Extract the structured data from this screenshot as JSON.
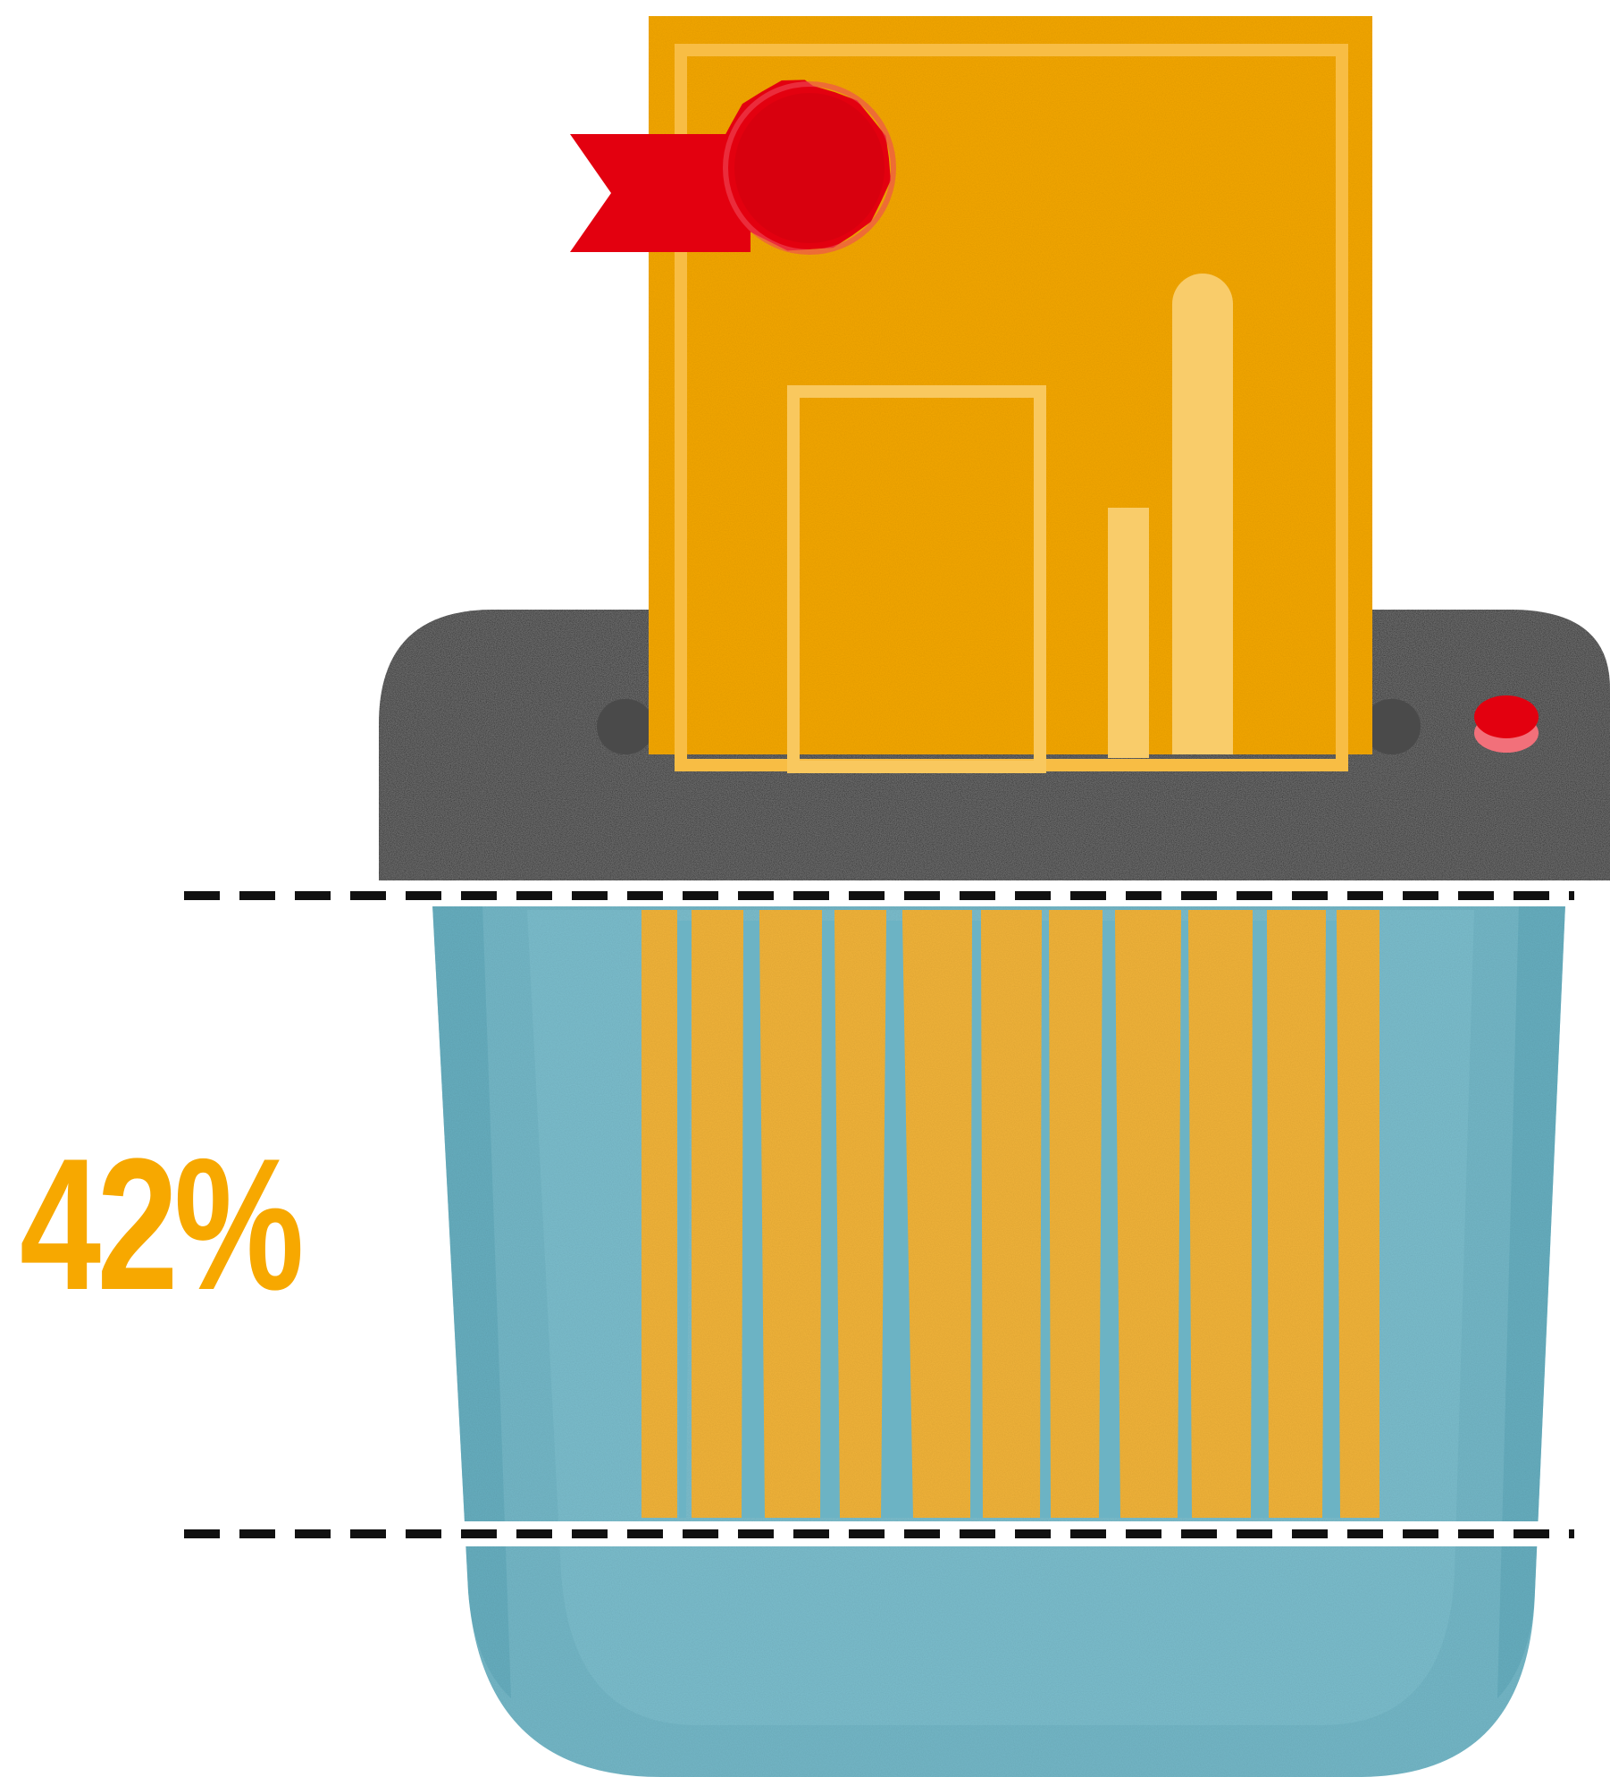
{
  "stat": {
    "value_text": "42%",
    "value": 42
  },
  "illustration": {
    "subject": "document-shredder",
    "icons": [
      "document-icon",
      "award-ribbon-icon",
      "shredder-icon",
      "power-button-icon",
      "waste-bin-icon"
    ]
  },
  "colors": {
    "document": "#F5A800",
    "document_light": "#F9C85E",
    "ribbon": "#E3000F",
    "shredder_body": "#1E1E1E",
    "bin": "#74B8C8",
    "bin_dark": "#5FA8BA",
    "strip": "#F2B43A",
    "stat_text": "#F7A800",
    "dash_line": "#111111"
  }
}
